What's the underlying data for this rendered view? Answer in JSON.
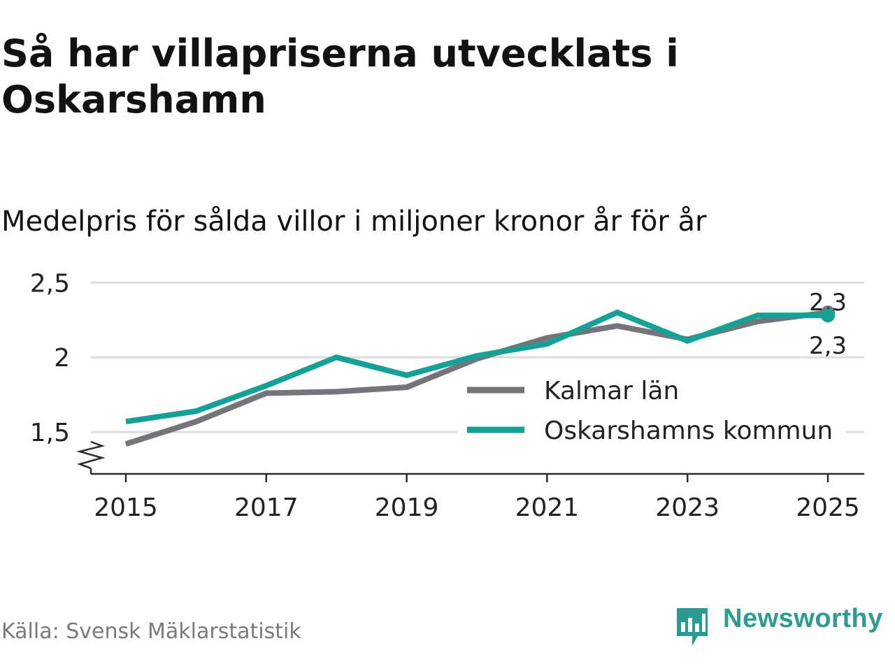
{
  "header": {
    "title": "Så har villapriserna utvecklats i Oskarshamn",
    "subtitle": "Medelpris för sålda villor i miljoner kronor år för år"
  },
  "footer": {
    "source": "Källa: Svensk Mäklarstatistik",
    "brand": "Newsworthy",
    "brand_icon": "bar-chart-speech-bubble-icon"
  },
  "colors": {
    "kalmar": "#75747a",
    "oskarshamn": "#15a195",
    "grid": "#dcdcdc",
    "axis": "#2a2a2a",
    "brand": "#2c9c92"
  },
  "chart_data": {
    "type": "line",
    "title": "Så har villapriserna utvecklats i Oskarshamn",
    "subtitle": "Medelpris för sålda villor i miljoner kronor år för år",
    "xlabel": "",
    "ylabel": "",
    "x": [
      2015,
      2016,
      2017,
      2018,
      2019,
      2020,
      2021,
      2022,
      2023,
      2024,
      2025
    ],
    "x_ticks": [
      "2015",
      "2017",
      "2019",
      "2021",
      "2023",
      "2025"
    ],
    "y_ticks": [
      "1,5",
      "2",
      "2,5"
    ],
    "y_tick_values": [
      1.5,
      2,
      2.5
    ],
    "ylim": [
      1.22,
      2.52
    ],
    "axis_break": true,
    "grid": true,
    "legend_position": "center-right",
    "series": [
      {
        "name": "Kalmar län",
        "color": "#75747a",
        "values": [
          1.42,
          1.57,
          1.76,
          1.77,
          1.8,
          1.99,
          2.13,
          2.21,
          2.12,
          2.24,
          2.3
        ],
        "end_label": "2,3"
      },
      {
        "name": "Oskarshamns kommun",
        "color": "#15a195",
        "values": [
          1.57,
          1.64,
          1.81,
          2.0,
          1.88,
          2.01,
          2.09,
          2.3,
          2.11,
          2.28,
          2.28
        ],
        "end_label": "2,3"
      }
    ]
  }
}
